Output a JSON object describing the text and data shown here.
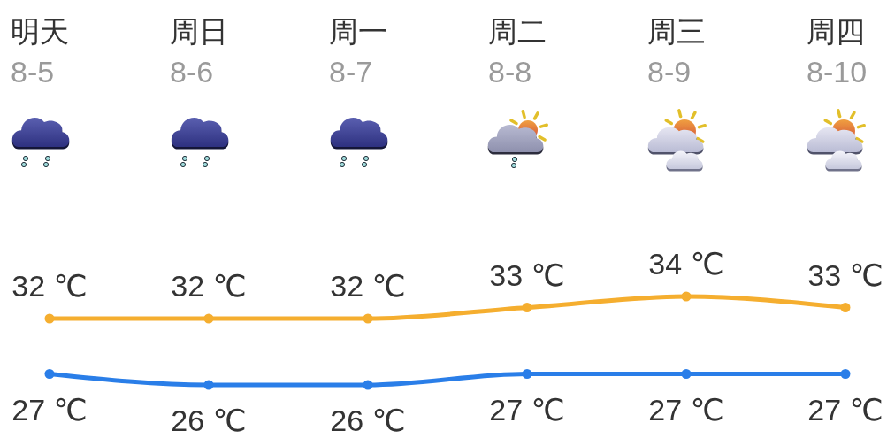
{
  "chart_data": {
    "type": "line",
    "categories": [
      "明天\n8-5",
      "周日\n8-6",
      "周一\n8-7",
      "周二\n8-8",
      "周三\n8-9",
      "周四\n8-10"
    ],
    "tick_labels": "x",
    "marker": "circle",
    "line_style": "solid",
    "series": [
      {
        "color": "#f5ae2f",
        "values": [
          32,
          32,
          32,
          33,
          34,
          33
        ],
        "value_labels": [
          "32 ℃",
          "32 ℃",
          "32 ℃",
          "33 ℃",
          "34 ℃",
          "33 ℃"
        ]
      },
      {
        "color": "#2a7ee8",
        "values": [
          27,
          26,
          26,
          27,
          27,
          27
        ],
        "value_labels": [
          "27 ℃",
          "26 ℃",
          "26 ℃",
          "27 ℃",
          "27 ℃",
          "27 ℃"
        ]
      }
    ]
  }
}
